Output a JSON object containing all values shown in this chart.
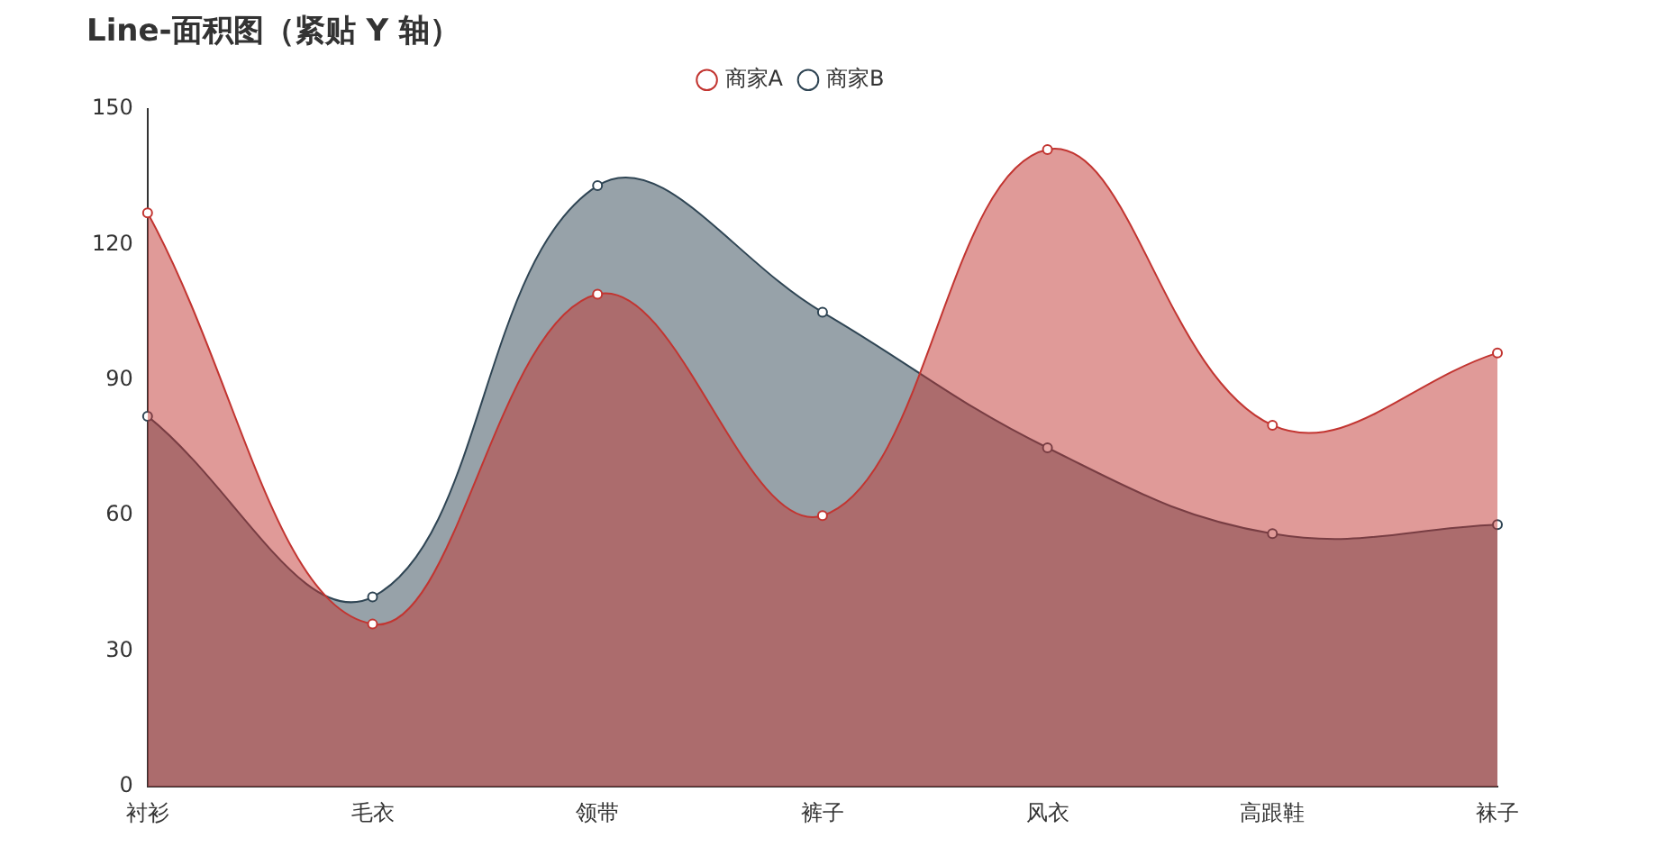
{
  "chart_data": {
    "type": "area",
    "title": "Line-面积图（紧贴 Y 轴）",
    "categories": [
      "衬衫",
      "毛衣",
      "领带",
      "裤子",
      "风衣",
      "高跟鞋",
      "袜子"
    ],
    "series": [
      {
        "name": "商家A",
        "color": "#c23531",
        "values": [
          127,
          36,
          109,
          60,
          141,
          80,
          96
        ]
      },
      {
        "name": "商家B",
        "color": "#2f4554",
        "values": [
          82,
          42,
          133,
          105,
          75,
          56,
          58
        ]
      }
    ],
    "ylim": [
      0,
      150
    ],
    "yticks": [
      0,
      30,
      60,
      90,
      120,
      150
    ],
    "grid": false,
    "legend": "top",
    "marker": "circle"
  }
}
